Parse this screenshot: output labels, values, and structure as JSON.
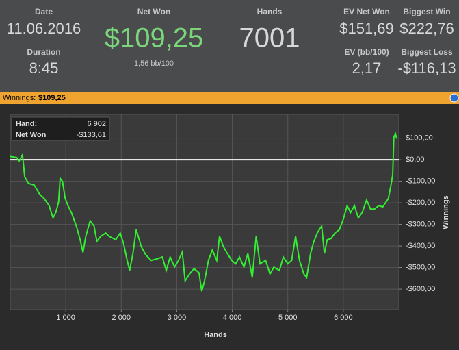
{
  "stats": {
    "date_label": "Date",
    "date": "11.06.2016",
    "duration_label": "Duration",
    "duration": "8:45",
    "net_won_label": "Net Won",
    "net_won": "$109,25",
    "bb100": "1,56 bb/100",
    "hands_label": "Hands",
    "hands": "7001",
    "ev_net_won_label": "EV Net Won",
    "ev_net_won": "$151,69",
    "biggest_win_label": "Biggest Win",
    "biggest_win": "$222,76",
    "ev_bb_label": "EV (bb/100)",
    "ev_bb": "2,17",
    "biggest_loss_label": "Biggest Loss",
    "biggest_loss": "-$116,13"
  },
  "bar": {
    "label": "Winnings:",
    "value": "$109,25"
  },
  "tooltip": {
    "hand_label": "Hand:",
    "hand": "6 902",
    "net_won_label": "Net Won",
    "net_won": "-$133,61"
  },
  "chart_data": {
    "type": "line",
    "xlabel": "Hands",
    "ylabel": "Winnings",
    "color": "#33ee33",
    "grid": true,
    "reference_line": 0,
    "xlim": [
      0,
      7000
    ],
    "ylim": [
      -695,
      210
    ],
    "xticks": [
      {
        "value": 1000,
        "label": "1 000"
      },
      {
        "value": 2000,
        "label": "2 000"
      },
      {
        "value": 3000,
        "label": "3 000"
      },
      {
        "value": 4000,
        "label": "4 000"
      },
      {
        "value": 5000,
        "label": "5 000"
      },
      {
        "value": 6000,
        "label": "6 000"
      }
    ],
    "yticks": [
      {
        "value": 100,
        "label": "$100,00"
      },
      {
        "value": 0,
        "label": "$0,00"
      },
      {
        "value": -100,
        "label": "-$100,00"
      },
      {
        "value": -200,
        "label": "-$200,00"
      },
      {
        "value": -300,
        "label": "-$300,00"
      },
      {
        "value": -400,
        "label": "-$400,00"
      },
      {
        "value": -500,
        "label": "-$500,00"
      },
      {
        "value": -600,
        "label": "-$600,00"
      }
    ],
    "x": [
      0,
      120,
      160,
      220,
      260,
      330,
      430,
      530,
      610,
      700,
      770,
      820,
      870,
      900,
      940,
      990,
      1040,
      1100,
      1190,
      1260,
      1310,
      1360,
      1440,
      1510,
      1560,
      1630,
      1720,
      1780,
      1900,
      1980,
      2040,
      2100,
      2150,
      2210,
      2270,
      2360,
      2440,
      2540,
      2640,
      2740,
      2810,
      2880,
      2960,
      3030,
      3100,
      3150,
      3230,
      3310,
      3400,
      3450,
      3500,
      3570,
      3640,
      3720,
      3770,
      3840,
      3910,
      3990,
      4060,
      4130,
      4210,
      4280,
      4360,
      4430,
      4500,
      4600,
      4680,
      4750,
      4850,
      4920,
      5000,
      5070,
      5140,
      5210,
      5290,
      5340,
      5410,
      5460,
      5530,
      5610,
      5660,
      5710,
      5780,
      5850,
      5930,
      6000,
      6070,
      6130,
      6200,
      6270,
      6340,
      6420,
      6490,
      6560,
      6640,
      6710,
      6760,
      6810,
      6860,
      6890,
      6910,
      6940,
      6960
    ],
    "values": [
      15,
      10,
      -6,
      22,
      -80,
      -110,
      -117,
      -160,
      -180,
      -213,
      -270,
      -245,
      -197,
      -86,
      -100,
      -180,
      -213,
      -245,
      -308,
      -371,
      -430,
      -355,
      -283,
      -308,
      -378,
      -355,
      -340,
      -355,
      -371,
      -340,
      -387,
      -460,
      -514,
      -435,
      -324,
      -403,
      -441,
      -467,
      -460,
      -451,
      -514,
      -451,
      -498,
      -467,
      -428,
      -562,
      -530,
      -505,
      -524,
      -610,
      -562,
      -467,
      -419,
      -467,
      -355,
      -403,
      -435,
      -467,
      -483,
      -451,
      -498,
      -435,
      -546,
      -355,
      -483,
      -467,
      -530,
      -498,
      -514,
      -451,
      -483,
      -467,
      -355,
      -467,
      -530,
      -546,
      -435,
      -387,
      -340,
      -308,
      -435,
      -371,
      -365,
      -340,
      -324,
      -276,
      -213,
      -245,
      -213,
      -270,
      -245,
      -187,
      -229,
      -229,
      -213,
      -219,
      -200,
      -181,
      -117,
      -70,
      105,
      121,
      98
    ]
  }
}
